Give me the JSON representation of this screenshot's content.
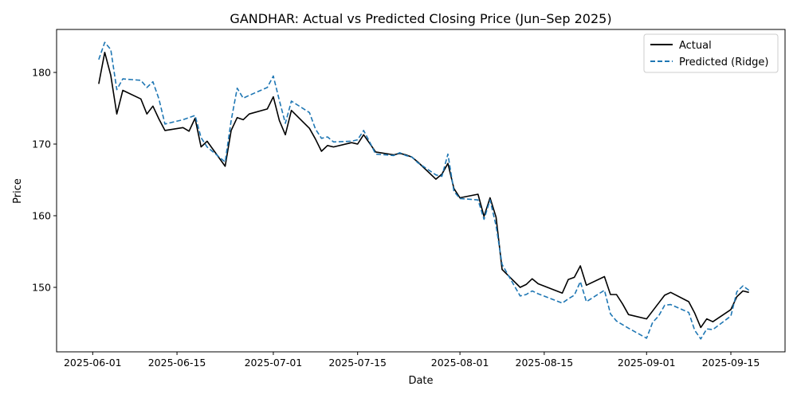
{
  "chart_data": {
    "type": "line",
    "title": "GANDHAR: Actual vs Predicted Closing Price (Jun–Sep 2025)",
    "xlabel": "Date",
    "ylabel": "Price",
    "xlim": [
      "2025-05-26",
      "2025-09-24"
    ],
    "ylim": [
      141.0,
      186.0
    ],
    "xticks": [
      "2025-06-01",
      "2025-06-15",
      "2025-07-01",
      "2025-07-15",
      "2025-08-01",
      "2025-08-15",
      "2025-09-01",
      "2025-09-15"
    ],
    "yticks": [
      150,
      160,
      170,
      180
    ],
    "grid": false,
    "legend_position": "top-right",
    "x": [
      "2025-06-02",
      "2025-06-03",
      "2025-06-04",
      "2025-06-05",
      "2025-06-06",
      "2025-06-09",
      "2025-06-10",
      "2025-06-11",
      "2025-06-12",
      "2025-06-13",
      "2025-06-16",
      "2025-06-17",
      "2025-06-18",
      "2025-06-19",
      "2025-06-20",
      "2025-06-23",
      "2025-06-24",
      "2025-06-25",
      "2025-06-26",
      "2025-06-27",
      "2025-06-30",
      "2025-07-01",
      "2025-07-02",
      "2025-07-03",
      "2025-07-04",
      "2025-07-07",
      "2025-07-08",
      "2025-07-09",
      "2025-07-10",
      "2025-07-11",
      "2025-07-14",
      "2025-07-15",
      "2025-07-16",
      "2025-07-17",
      "2025-07-18",
      "2025-07-21",
      "2025-07-22",
      "2025-07-23",
      "2025-07-24",
      "2025-07-25",
      "2025-07-28",
      "2025-07-29",
      "2025-07-30",
      "2025-07-31",
      "2025-08-01",
      "2025-08-04",
      "2025-08-05",
      "2025-08-06",
      "2025-08-07",
      "2025-08-08",
      "2025-08-11",
      "2025-08-12",
      "2025-08-13",
      "2025-08-14",
      "2025-08-18",
      "2025-08-19",
      "2025-08-20",
      "2025-08-21",
      "2025-08-22",
      "2025-08-25",
      "2025-08-26",
      "2025-08-27",
      "2025-08-28",
      "2025-08-29",
      "2025-09-01",
      "2025-09-02",
      "2025-09-03",
      "2025-09-04",
      "2025-09-05",
      "2025-09-08",
      "2025-09-09",
      "2025-09-10",
      "2025-09-11",
      "2025-09-12",
      "2025-09-15",
      "2025-09-16",
      "2025-09-17",
      "2025-09-18"
    ],
    "series": [
      {
        "name": "Actual",
        "color": "#000000",
        "style": "solid",
        "values": [
          178.4,
          182.8,
          179.6,
          174.2,
          177.5,
          176.3,
          174.2,
          175.3,
          173.5,
          171.9,
          172.3,
          171.8,
          173.6,
          169.6,
          170.4,
          166.9,
          171.9,
          173.7,
          173.4,
          174.2,
          174.9,
          176.6,
          173.3,
          171.3,
          174.7,
          172.2,
          170.7,
          169.0,
          169.8,
          169.6,
          170.2,
          170.0,
          171.3,
          170.1,
          168.9,
          168.5,
          168.7,
          168.5,
          168.2,
          167.5,
          165.1,
          165.8,
          167.3,
          163.8,
          162.5,
          163.0,
          159.9,
          162.5,
          159.8,
          152.5,
          150.0,
          150.4,
          151.2,
          150.5,
          149.2,
          151.1,
          151.4,
          153.0,
          150.3,
          151.5,
          149.0,
          149.0,
          147.7,
          146.2,
          145.6,
          146.7,
          147.8,
          148.9,
          149.3,
          148.0,
          146.4,
          144.4,
          145.6,
          145.2,
          146.9,
          148.7,
          149.5,
          149.3
        ]
      },
      {
        "name": "Predicted (Ridge)",
        "color": "#1f77b4",
        "style": "dashed",
        "values": [
          181.8,
          184.2,
          183.2,
          177.6,
          179.1,
          178.9,
          177.9,
          178.7,
          176.3,
          172.8,
          173.4,
          173.7,
          174.0,
          170.9,
          169.6,
          167.5,
          173.3,
          177.8,
          176.4,
          176.8,
          177.9,
          179.5,
          176.1,
          172.9,
          176.0,
          174.4,
          172.1,
          170.8,
          171.0,
          170.3,
          170.4,
          170.6,
          171.9,
          170.3,
          168.6,
          168.4,
          168.8,
          168.4,
          168.2,
          167.4,
          165.7,
          165.5,
          168.6,
          163.4,
          162.4,
          162.2,
          159.5,
          162.2,
          158.6,
          153.2,
          148.8,
          149.0,
          149.5,
          149.1,
          147.8,
          148.4,
          148.9,
          150.8,
          148.0,
          149.6,
          146.3,
          145.3,
          144.8,
          144.3,
          142.9,
          145.1,
          146.0,
          147.5,
          147.6,
          146.5,
          144.0,
          142.8,
          144.2,
          144.1,
          146.0,
          149.4,
          150.2,
          149.6
        ]
      }
    ]
  }
}
